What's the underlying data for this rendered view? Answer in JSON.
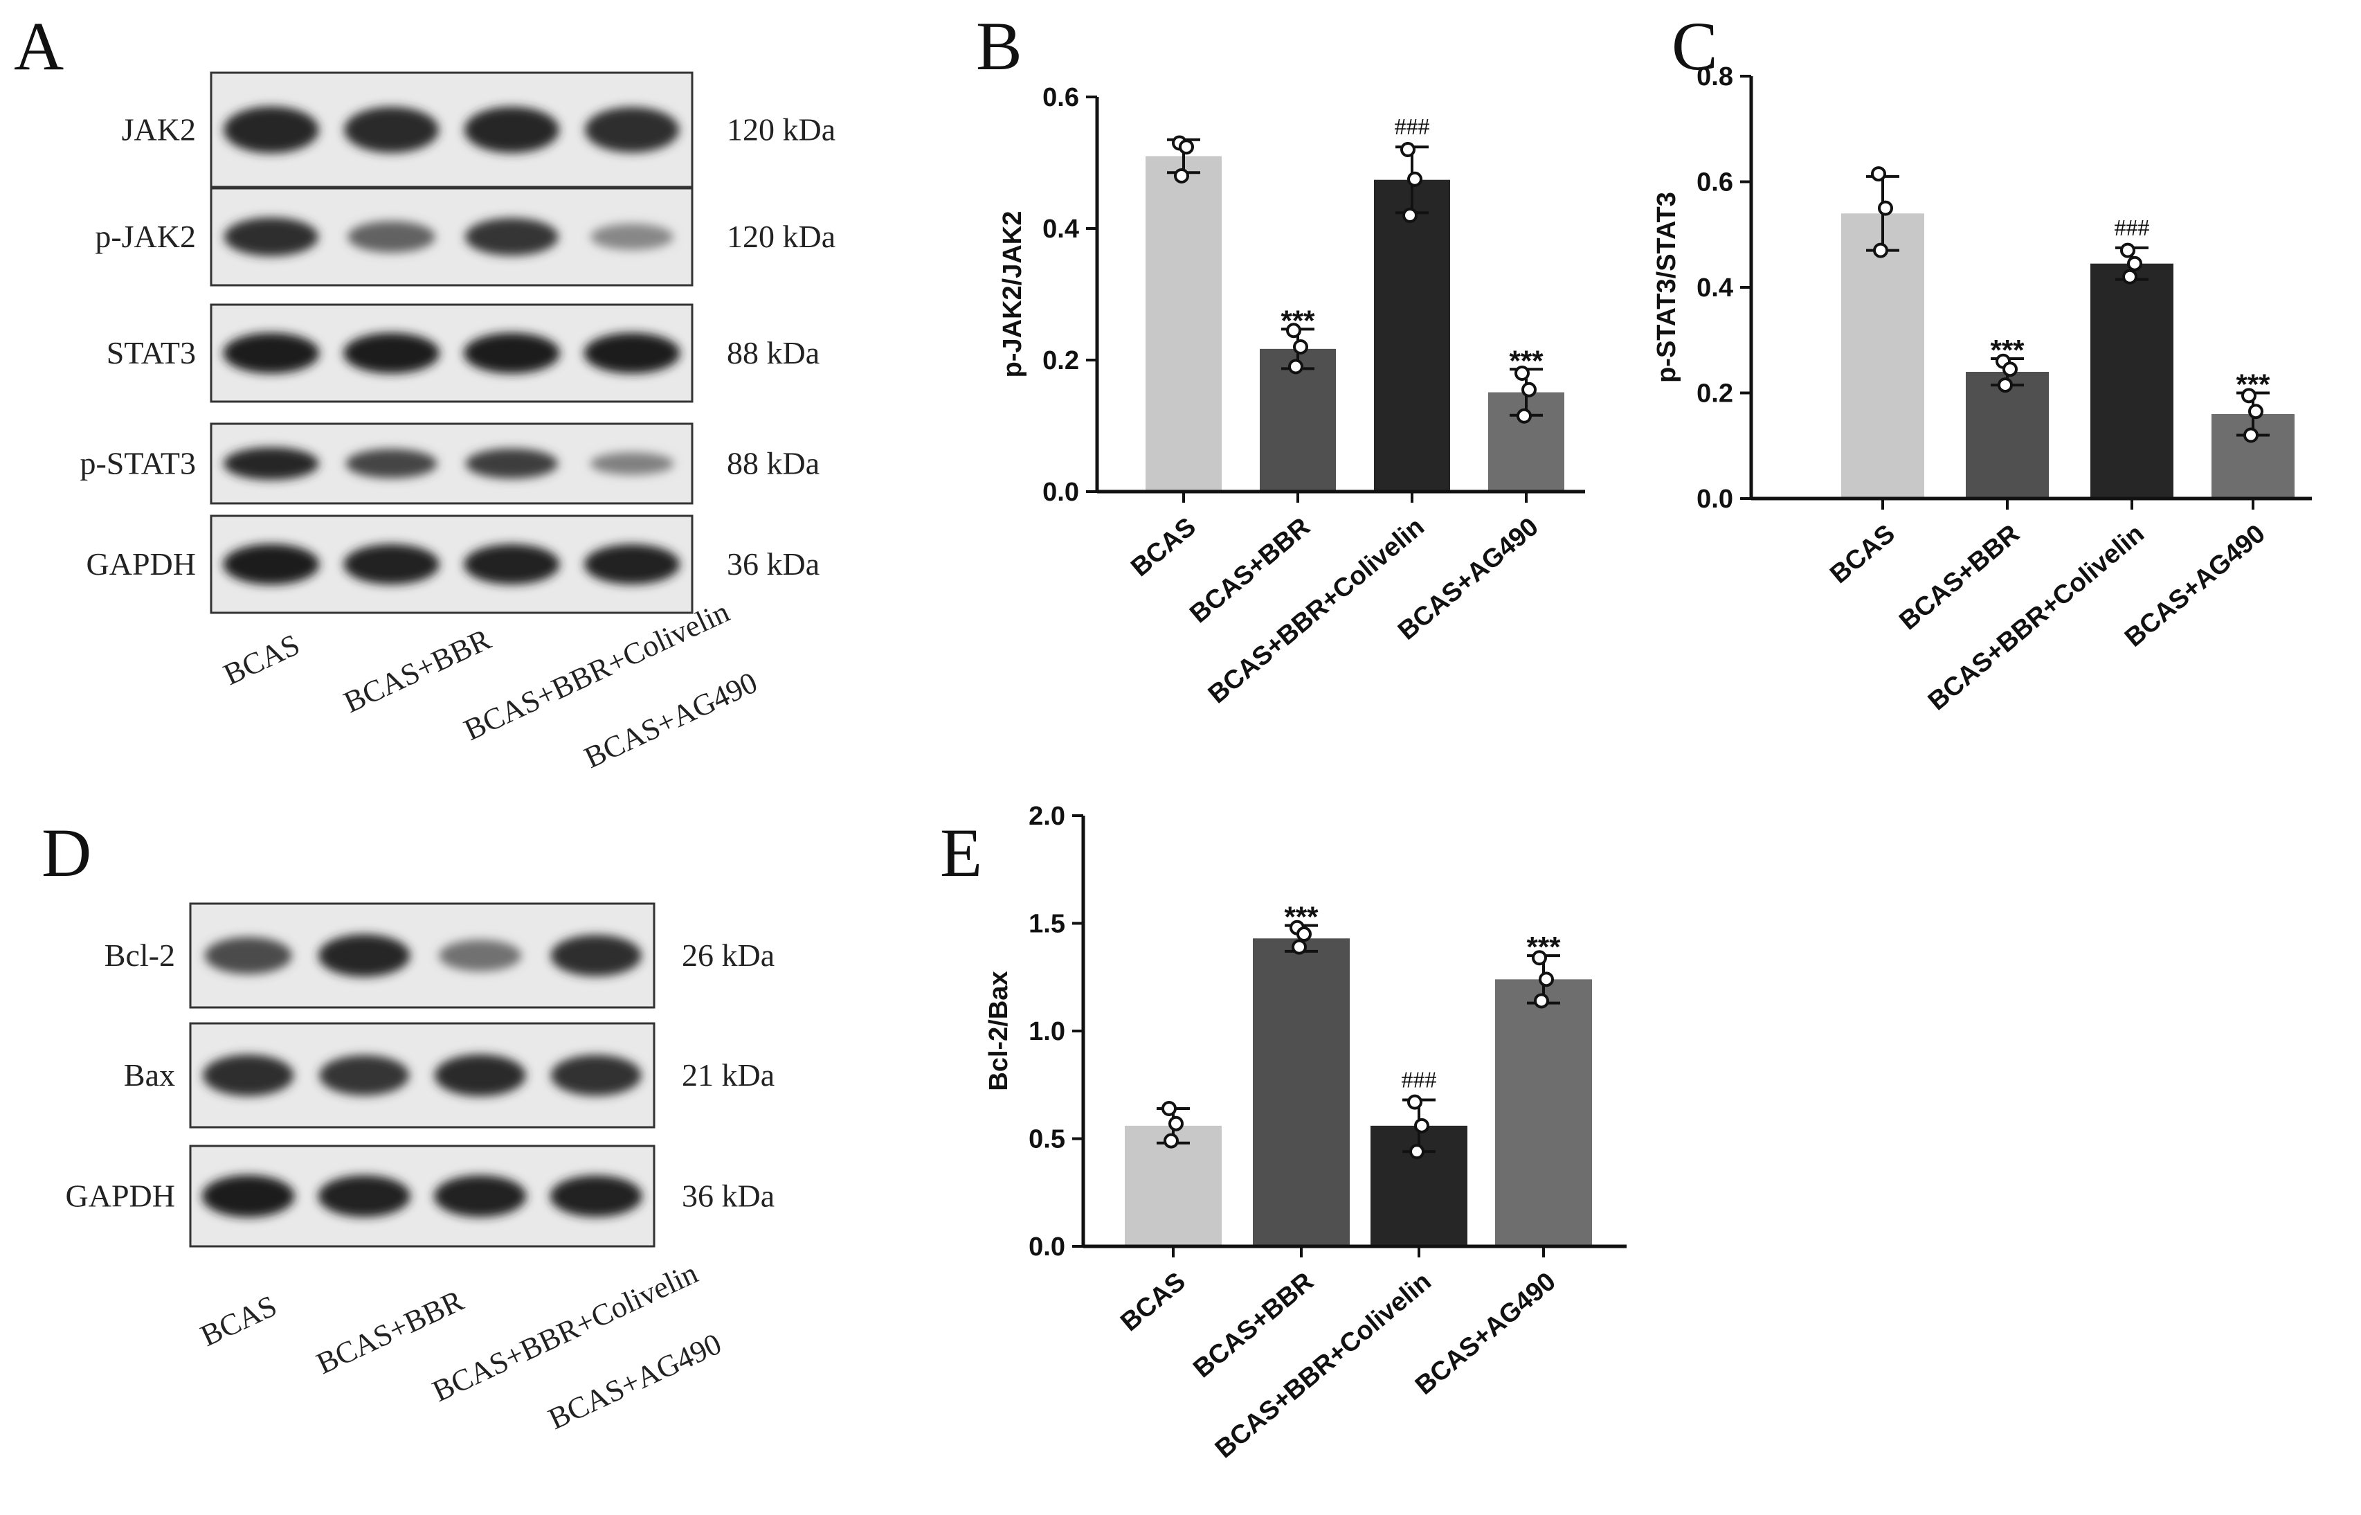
{
  "panels": {
    "A": "A",
    "B": "B",
    "C": "C",
    "D": "D",
    "E": "E"
  },
  "blot_A": {
    "rows": [
      {
        "name": "JAK2",
        "size": "120 kDa",
        "intensity": [
          0.95,
          0.92,
          0.93,
          0.9
        ]
      },
      {
        "name": "p-JAK2",
        "size": "120 kDa",
        "intensity": [
          0.9,
          0.55,
          0.85,
          0.3
        ]
      },
      {
        "name": "STAT3",
        "size": "88 kDa",
        "intensity": [
          1.0,
          1.0,
          1.0,
          1.0
        ]
      },
      {
        "name": "p-STAT3",
        "size": "88 kDa",
        "intensity": [
          0.95,
          0.75,
          0.8,
          0.35
        ]
      },
      {
        "name": "GAPDH",
        "size": "36 kDa",
        "intensity": [
          1.0,
          0.98,
          0.98,
          0.97
        ]
      }
    ],
    "lanes": [
      "BCAS",
      "BCAS+BBR",
      "BCAS+BBR+Colivelin",
      "BCAS+AG490"
    ]
  },
  "blot_D": {
    "rows": [
      {
        "name": "Bcl-2",
        "size": "26 kDa",
        "intensity": [
          0.7,
          0.95,
          0.45,
          0.9
        ]
      },
      {
        "name": "Bax",
        "size": "21 kDa",
        "intensity": [
          0.9,
          0.85,
          0.92,
          0.88
        ]
      },
      {
        "name": "GAPDH",
        "size": "36 kDa",
        "intensity": [
          1.0,
          0.98,
          0.98,
          0.97
        ]
      }
    ],
    "lanes": [
      "BCAS",
      "BCAS+BBR",
      "BCAS+BBR+Colivelin",
      "BCAS+AG490"
    ]
  },
  "chart_data": [
    {
      "panel": "B",
      "type": "bar",
      "categories": [
        "BCAS",
        "BCAS+BBR",
        "BCAS+BBR+Colivelin",
        "BCAS+AG490"
      ],
      "values": [
        0.51,
        0.217,
        0.474,
        0.151
      ],
      "errors": [
        0.025,
        0.03,
        0.05,
        0.035
      ],
      "points": [
        [
          0.53,
          0.524,
          0.48
        ],
        [
          0.245,
          0.22,
          0.19
        ],
        [
          0.52,
          0.475,
          0.42
        ],
        [
          0.18,
          0.155,
          0.115
        ]
      ],
      "colors": [
        "#c8c8c8",
        "#505050",
        "#262626",
        "#6e6e6e"
      ],
      "annotations": [
        "",
        "***",
        "###",
        "***"
      ],
      "ylabel": "p-JAK2/JAK2",
      "ylim": [
        0,
        0.6
      ],
      "yticks": [
        "0.0",
        "0.2",
        "0.4",
        "0.6"
      ]
    },
    {
      "panel": "C",
      "type": "bar",
      "categories": [
        "BCAS",
        "BCAS+BBR",
        "BCAS+BBR+Colivelin",
        "BCAS+AG490"
      ],
      "values": [
        0.54,
        0.24,
        0.445,
        0.16
      ],
      "errors": [
        0.07,
        0.025,
        0.03,
        0.04
      ],
      "points": [
        [
          0.615,
          0.55,
          0.47
        ],
        [
          0.26,
          0.245,
          0.215
        ],
        [
          0.47,
          0.445,
          0.42
        ],
        [
          0.195,
          0.165,
          0.12
        ]
      ],
      "colors": [
        "#c8c8c8",
        "#505050",
        "#262626",
        "#6e6e6e"
      ],
      "annotations": [
        "",
        "***",
        "###",
        "***"
      ],
      "ylabel": "p-STAT3/STAT3",
      "ylim": [
        0,
        0.8
      ],
      "yticks": [
        "0.0",
        "0.2",
        "0.4",
        "0.6",
        "0.8"
      ]
    },
    {
      "panel": "E",
      "type": "bar",
      "categories": [
        "BCAS",
        "BCAS+BBR",
        "BCAS+BBR+Colivelin",
        "BCAS+AG490"
      ],
      "values": [
        0.56,
        1.43,
        0.56,
        1.24
      ],
      "errors": [
        0.08,
        0.06,
        0.12,
        0.11
      ],
      "points": [
        [
          0.64,
          0.57,
          0.49
        ],
        [
          1.48,
          1.45,
          1.39
        ],
        [
          0.67,
          0.56,
          0.44
        ],
        [
          1.34,
          1.24,
          1.14
        ]
      ],
      "colors": [
        "#c8c8c8",
        "#505050",
        "#262626",
        "#6e6e6e"
      ],
      "annotations": [
        "",
        "***",
        "###",
        "***"
      ],
      "ylabel": "Bcl-2/Bax",
      "ylim": [
        0,
        2.0
      ],
      "yticks": [
        "0.0",
        "0.5",
        "1.0",
        "1.5",
        "2.0"
      ]
    }
  ]
}
